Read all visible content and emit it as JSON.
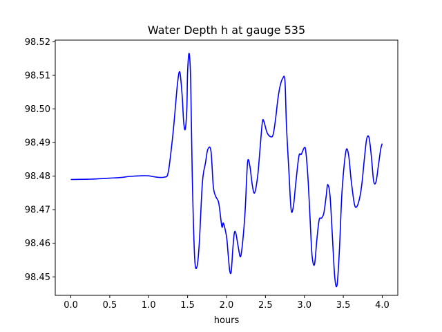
{
  "chart_data": {
    "type": "line",
    "title": "Water Depth h at gauge 535",
    "xlabel": "hours",
    "ylabel": "",
    "xlim": [
      -0.2,
      4.2
    ],
    "ylim": [
      98.4445,
      98.5205
    ],
    "xticks": [
      0.0,
      0.5,
      1.0,
      1.5,
      2.0,
      2.5,
      3.0,
      3.5,
      4.0
    ],
    "xtick_labels": [
      "0.0",
      "0.5",
      "1.0",
      "1.5",
      "2.0",
      "2.5",
      "3.0",
      "3.5",
      "4.0"
    ],
    "yticks": [
      98.45,
      98.46,
      98.47,
      98.48,
      98.49,
      98.5,
      98.51,
      98.52
    ],
    "ytick_labels": [
      "98.45",
      "98.46",
      "98.47",
      "98.48",
      "98.49",
      "98.50",
      "98.51",
      "98.52"
    ],
    "grid": false,
    "series": [
      {
        "color": "#0000ff",
        "x": [
          0.0,
          0.25,
          0.5,
          0.65,
          0.75,
          0.9,
          1.0,
          1.1,
          1.2,
          1.25,
          1.3,
          1.33,
          1.37,
          1.4,
          1.43,
          1.45,
          1.47,
          1.49,
          1.5,
          1.52,
          1.54,
          1.56,
          1.59,
          1.62,
          1.65,
          1.69,
          1.73,
          1.76,
          1.8,
          1.83,
          1.86,
          1.9,
          1.94,
          1.96,
          2.0,
          2.02,
          2.04,
          2.06,
          2.08,
          2.1,
          2.12,
          2.15,
          2.18,
          2.21,
          2.24,
          2.27,
          2.3,
          2.33,
          2.36,
          2.4,
          2.43,
          2.46,
          2.48,
          2.52,
          2.57,
          2.6,
          2.63,
          2.66,
          2.69,
          2.72,
          2.75,
          2.77,
          2.8,
          2.83,
          2.86,
          2.89,
          2.93,
          2.96,
          3.0,
          3.02,
          3.05,
          3.08,
          3.1,
          3.13,
          3.16,
          3.19,
          3.22,
          3.25,
          3.28,
          3.3,
          3.33,
          3.36,
          3.39,
          3.42,
          3.45,
          3.48,
          3.51,
          3.54,
          3.57,
          3.6,
          3.64,
          3.67,
          3.71,
          3.74,
          3.77,
          3.8,
          3.83,
          3.86,
          3.89,
          3.92,
          3.95,
          3.98,
          4.0
        ],
        "y": [
          98.479,
          98.4791,
          98.4794,
          98.4796,
          98.4799,
          98.4801,
          98.4801,
          98.4797,
          98.4797,
          98.481,
          98.49,
          98.497,
          98.5075,
          98.511,
          98.504,
          98.496,
          98.494,
          98.5,
          98.511,
          98.5165,
          98.508,
          98.48,
          98.456,
          98.453,
          98.46,
          98.478,
          98.484,
          98.488,
          98.4875,
          98.477,
          98.474,
          98.472,
          98.465,
          98.466,
          98.462,
          98.457,
          98.452,
          98.4515,
          98.458,
          98.463,
          98.463,
          98.459,
          98.456,
          98.461,
          98.47,
          98.484,
          98.483,
          98.4775,
          98.475,
          98.48,
          98.488,
          98.496,
          98.4963,
          98.493,
          98.4917,
          98.4925,
          98.497,
          98.503,
          98.507,
          98.509,
          98.5085,
          98.495,
          98.482,
          98.47,
          98.4712,
          98.478,
          98.486,
          98.4865,
          98.4885,
          98.487,
          98.478,
          98.464,
          98.456,
          98.4537,
          98.461,
          98.467,
          98.4675,
          98.469,
          98.474,
          98.4775,
          98.474,
          98.462,
          98.45,
          98.4476,
          98.458,
          98.474,
          98.483,
          98.488,
          98.486,
          98.479,
          98.472,
          98.4708,
          98.4735,
          98.478,
          98.485,
          98.491,
          98.4915,
          98.486,
          98.4785,
          98.4783,
          98.483,
          98.488,
          98.4897
        ]
      }
    ]
  }
}
